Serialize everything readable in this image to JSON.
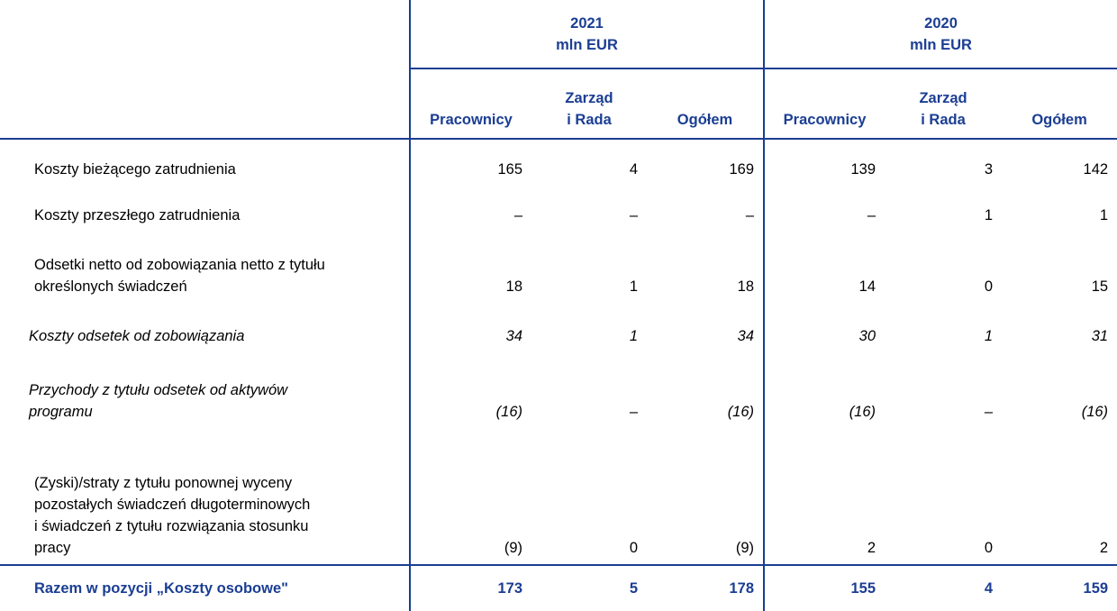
{
  "table": {
    "groups": [
      {
        "year": "2021",
        "unit": "mln EUR"
      },
      {
        "year": "2020",
        "unit": "mln EUR"
      }
    ],
    "columns": [
      [
        "Pracownicy"
      ],
      [
        "Zarząd",
        "i Rada"
      ],
      [
        "Ogółem"
      ],
      [
        "Pracownicy"
      ],
      [
        "Zarząd",
        "i Rada"
      ],
      [
        "Ogółem"
      ]
    ],
    "rows": [
      {
        "label": [
          "Koszty bieżącego zatrudnienia"
        ],
        "italic": false,
        "cells": [
          "165",
          "4",
          "169",
          "139",
          "3",
          "142"
        ]
      },
      {
        "label": [
          "Koszty przeszłego zatrudnienia"
        ],
        "italic": false,
        "cells": [
          "–",
          "–",
          "–",
          "–",
          "1",
          "1"
        ]
      },
      {
        "label": [
          "Odsetki netto od zobowiązania netto z tytułu",
          "określonych świadczeń"
        ],
        "italic": false,
        "cells": [
          "18",
          "1",
          "18",
          "14",
          "0",
          "15"
        ]
      },
      {
        "label": [
          "Koszty odsetek od zobowiązania"
        ],
        "italic": true,
        "cells": [
          "34",
          "1",
          "34",
          "30",
          "1",
          "31"
        ]
      },
      {
        "label": [
          "Przychody z tytułu odsetek od aktywów",
          "programu"
        ],
        "italic": true,
        "cells": [
          "(16)",
          "–",
          "(16)",
          "(16)",
          "–",
          "(16)"
        ]
      },
      {
        "label": [
          "(Zyski)/straty z tytułu ponownej wyceny",
          "pozostałych świadczeń długoterminowych",
          "i świadczeń z tytułu rozwiązania stosunku",
          "pracy"
        ],
        "italic": false,
        "cells": [
          "(9)",
          "0",
          "(9)",
          "2",
          "0",
          "2"
        ]
      }
    ],
    "total": {
      "label": "Razem w pozycji „Koszty osobowe\"",
      "cells": [
        "173",
        "5",
        "178",
        "155",
        "4",
        "159"
      ]
    }
  }
}
